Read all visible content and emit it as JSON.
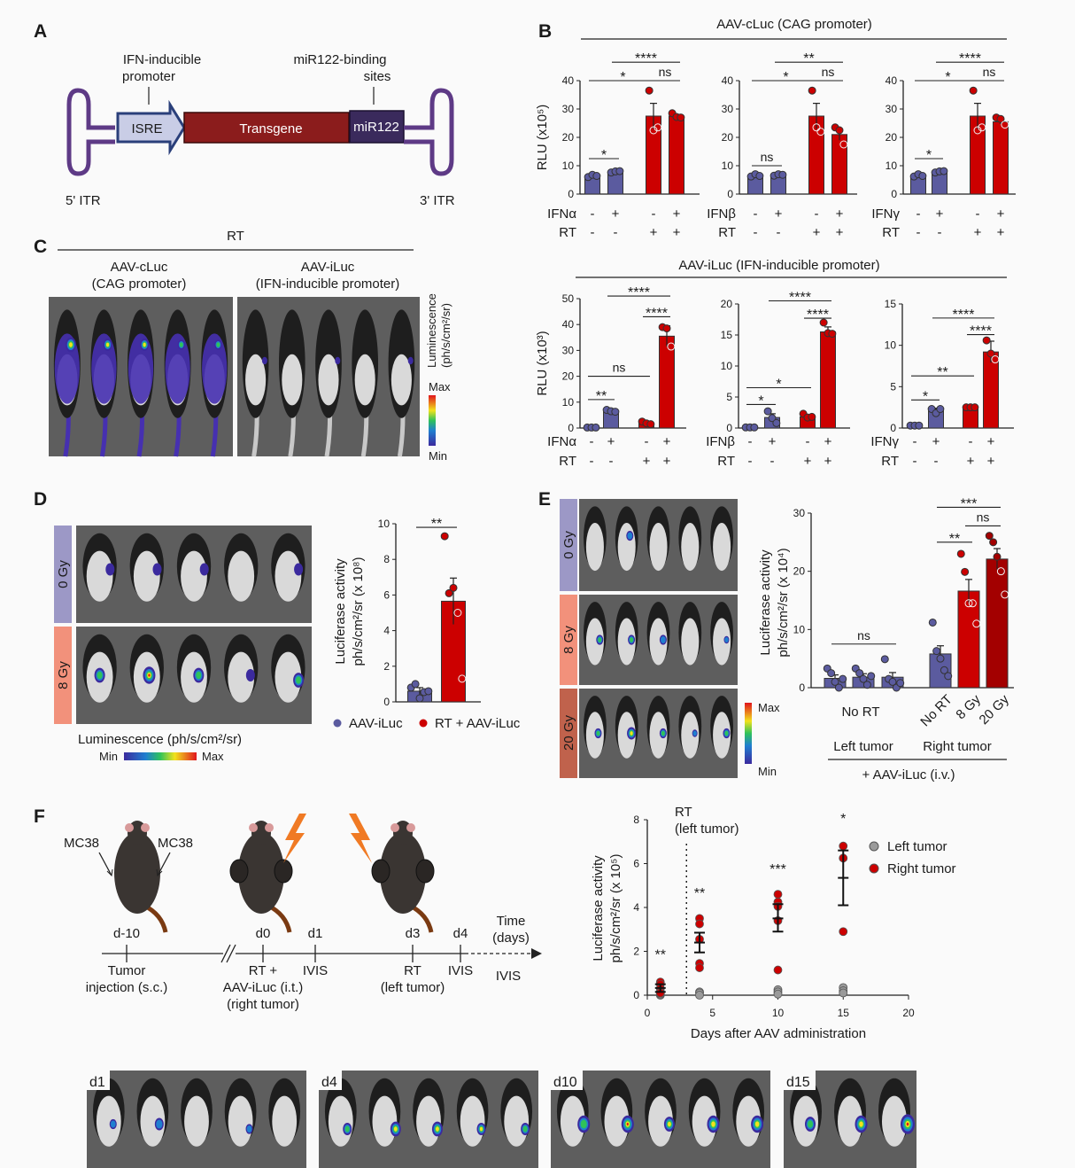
{
  "panels": {
    "A": {
      "letter": "A",
      "promoter_label_1": "IFN-inducible",
      "promoter_label_2": "promoter",
      "mir_label_1": "miR122-binding",
      "mir_label_2": "sites",
      "isre": "ISRE",
      "transgene": "Transgene",
      "mir122": "miR122",
      "itr5": "5' ITR",
      "itr3": "3' ITR"
    },
    "B": {
      "letter": "B",
      "title_top": "AAV-cLuc (CAG promoter)",
      "title_bottom": "AAV-iLuc (IFN-inducible promoter)"
    },
    "C": {
      "letter": "C",
      "header": "RT",
      "col1_1": "AAV-cLuc",
      "col1_2": "(CAG promoter)",
      "col2_1": "AAV-iLuc",
      "col2_2": "(IFN-inducible promoter)",
      "scale_label": "Luminescence",
      "scale_unit": "(ph/s/cm²/sr)",
      "max": "Max",
      "min": "Min"
    },
    "D": {
      "letter": "D",
      "row1": "0 Gy",
      "row2": "8 Gy",
      "scale_label": "Luminescence (ph/s/cm²/sr)",
      "min": "Min",
      "max": "Max"
    },
    "E": {
      "letter": "E",
      "row1": "0 Gy",
      "row2": "8 Gy",
      "row3": "20 Gy",
      "max": "Max",
      "min": "Min",
      "group_left": "No RT",
      "left_tumor": "Left tumor",
      "right_tumor": "Right tumor",
      "treatment": "+ AAV-iLuc (i.v.)"
    },
    "F": {
      "letter": "F",
      "mc38_left": "MC38",
      "mc38_right": "MC38",
      "timeline": [
        {
          "day": "d-10",
          "below": [
            "Tumor",
            "injection (s.c.)"
          ]
        },
        {
          "day": "d0",
          "below": [
            "RT +",
            "AAV-iLuc (i.t.)",
            "(right tumor)"
          ]
        },
        {
          "day": "d1",
          "below": [
            "IVIS"
          ]
        },
        {
          "day": "d3",
          "below": [
            "RT",
            "(left tumor)"
          ]
        },
        {
          "day": "d4",
          "below": [
            "IVIS"
          ]
        }
      ],
      "time_label_1": "Time",
      "time_label_2": "(days)",
      "last_ivis": "IVIS",
      "images": [
        "d1",
        "d4",
        "d10",
        "d15"
      ]
    }
  },
  "colors": {
    "ifn_minus_rt_minus": "#5b5b9f",
    "rt": "#cc0000",
    "rt_20gy": "#a30000",
    "left_tumor": "#9a9a9a",
    "itr": "#5e3a86",
    "transgene": "#8b1c1c",
    "mir122_box": "#3a2a5c",
    "isre_box": "#c9cde6",
    "gy0": "#9c98c6",
    "gy8": "#f2917b",
    "gy20": "#c0624c"
  },
  "chart_data": [
    {
      "type": "bar",
      "ylabel": "RLU (x10⁵)",
      "ylim": [
        0,
        40
      ],
      "yticks": [
        0,
        10,
        20,
        30,
        40
      ],
      "rows": [
        {
          "label": "IFNα",
          "values": [
            "-",
            "+",
            "-",
            "+"
          ]
        },
        {
          "label": "RT",
          "values": [
            "-",
            "-",
            "+",
            "+"
          ]
        }
      ],
      "values": [
        6.5,
        8,
        27.5,
        27.5
      ],
      "sem": [
        0.4,
        0.2,
        4.5,
        0.6
      ],
      "points": [
        [
          6,
          6.8,
          6.4
        ],
        [
          7.6,
          8,
          8.1
        ],
        [
          36.5,
          22.5,
          23.5
        ],
        [
          28.5,
          27.2,
          27
        ]
      ],
      "brackets": [
        {
          "a": 0,
          "b": 1,
          "y": 12.5,
          "label": "*"
        },
        {
          "a": 0,
          "b": 2,
          "y": 40,
          "label": "*"
        },
        {
          "a": 2,
          "b": 3,
          "y": 40,
          "label": "ns"
        },
        {
          "a": 1,
          "b": 3,
          "y": 46.5,
          "label": "****"
        }
      ]
    },
    {
      "type": "bar",
      "ylabel": "",
      "ylim": [
        0,
        40
      ],
      "yticks": [
        0,
        10,
        20,
        30,
        40
      ],
      "rows": [
        {
          "label": "IFNβ",
          "values": [
            "-",
            "+",
            "-",
            "+"
          ]
        },
        {
          "label": "RT",
          "values": [
            "-",
            "-",
            "+",
            "+"
          ]
        }
      ],
      "values": [
        6.5,
        6.8,
        27.5,
        21
      ],
      "sem": [
        0.3,
        0.2,
        4.5,
        2
      ],
      "points": [
        [
          6.2,
          7,
          6.4
        ],
        [
          6.5,
          7,
          6.8
        ],
        [
          36.5,
          23.5,
          22
        ],
        [
          23.5,
          22.5,
          17.5
        ]
      ],
      "brackets": [
        {
          "a": 0,
          "b": 1,
          "y": 10,
          "label": "ns"
        },
        {
          "a": 0,
          "b": 2,
          "y": 40,
          "label": "*"
        },
        {
          "a": 2,
          "b": 3,
          "y": 40,
          "label": "ns"
        },
        {
          "a": 1,
          "b": 3,
          "y": 46.5,
          "label": "**"
        }
      ]
    },
    {
      "type": "bar",
      "ylabel": "",
      "ylim": [
        0,
        40
      ],
      "yticks": [
        0,
        10,
        20,
        30,
        40
      ],
      "rows": [
        {
          "label": "IFNγ",
          "values": [
            "-",
            "+",
            "-",
            "+"
          ]
        },
        {
          "label": "RT",
          "values": [
            "-",
            "-",
            "+",
            "+"
          ]
        }
      ],
      "values": [
        6.5,
        8,
        27.5,
        25.5
      ],
      "sem": [
        0.4,
        0.2,
        4.5,
        0.8
      ],
      "points": [
        [
          6.2,
          7,
          6.4
        ],
        [
          7.6,
          8,
          8.1
        ],
        [
          36.5,
          22.5,
          23.5
        ],
        [
          27,
          26.5,
          24.5
        ]
      ],
      "brackets": [
        {
          "a": 0,
          "b": 1,
          "y": 12.5,
          "label": "*"
        },
        {
          "a": 0,
          "b": 2,
          "y": 40,
          "label": "*"
        },
        {
          "a": 2,
          "b": 3,
          "y": 40,
          "label": "ns"
        },
        {
          "a": 1,
          "b": 3,
          "y": 46.5,
          "label": "****"
        }
      ]
    },
    {
      "type": "bar",
      "ylabel": "RLU (x10³)",
      "ylim": [
        0,
        50
      ],
      "yticks": [
        0,
        10,
        20,
        30,
        40,
        50
      ],
      "rows": [
        {
          "label": "IFNα",
          "values": [
            "-",
            "+",
            "-",
            "+"
          ]
        },
        {
          "label": "RT",
          "values": [
            "-",
            "-",
            "+",
            "+"
          ]
        }
      ],
      "values": [
        0.3,
        6.5,
        2,
        35.5
      ],
      "sem": [
        0.1,
        0.4,
        0.4,
        4
      ],
      "points": [
        [
          0.2,
          0.2,
          0.2
        ],
        [
          7,
          6.5,
          6.3
        ],
        [
          2.5,
          1.8,
          1.5
        ],
        [
          39,
          38.5,
          31.5
        ]
      ],
      "brackets": [
        {
          "a": 0,
          "b": 1,
          "y": 11,
          "label": "**"
        },
        {
          "a": 0,
          "b": 2,
          "y": 20,
          "label": "ns"
        },
        {
          "a": 2,
          "b": 3,
          "y": 43,
          "label": "****"
        },
        {
          "a": 1,
          "b": 3,
          "y": 51,
          "label": "****"
        }
      ]
    },
    {
      "type": "bar",
      "ylabel": "",
      "ylim": [
        0,
        20
      ],
      "yticks": [
        0,
        5,
        10,
        15,
        20
      ],
      "rows": [
        {
          "label": "IFNβ",
          "values": [
            "-",
            "+",
            "-",
            "+"
          ]
        },
        {
          "label": "RT",
          "values": [
            "-",
            "-",
            "+",
            "+"
          ]
        }
      ],
      "values": [
        0.1,
        1.7,
        1.8,
        15.5
      ],
      "sem": [
        0.05,
        0.6,
        0.3,
        0.8
      ],
      "points": [
        [
          0.1,
          0.1,
          0.1
        ],
        [
          2.7,
          1.6,
          0.8
        ],
        [
          2.3,
          1.7,
          1.8
        ],
        [
          17,
          15.3,
          15.2
        ]
      ],
      "brackets": [
        {
          "a": 0,
          "b": 1,
          "y": 3.8,
          "label": "*"
        },
        {
          "a": 0,
          "b": 2,
          "y": 6.5,
          "label": "*"
        },
        {
          "a": 2,
          "b": 3,
          "y": 17.7,
          "label": "****"
        },
        {
          "a": 1,
          "b": 3,
          "y": 20.5,
          "label": "****"
        }
      ]
    },
    {
      "type": "bar",
      "ylabel": "",
      "ylim": [
        0,
        15
      ],
      "yticks": [
        0,
        5,
        10,
        15
      ],
      "rows": [
        {
          "label": "IFNγ",
          "values": [
            "-",
            "+",
            "-",
            "+"
          ]
        },
        {
          "label": "RT",
          "values": [
            "-",
            "-",
            "+",
            "+"
          ]
        }
      ],
      "values": [
        0.3,
        2.2,
        2.5,
        9.2
      ],
      "sem": [
        0.05,
        0.2,
        0.1,
        1.3
      ],
      "points": [
        [
          0.3,
          0.3,
          0.3
        ],
        [
          2.3,
          1.8,
          2.3
        ],
        [
          2.5,
          2.5,
          2.5
        ],
        [
          10.6,
          9,
          8.3
        ]
      ],
      "brackets": [
        {
          "a": 0,
          "b": 1,
          "y": 3.4,
          "label": "*"
        },
        {
          "a": 0,
          "b": 2,
          "y": 6.3,
          "label": "**"
        },
        {
          "a": 2,
          "b": 3,
          "y": 11.3,
          "label": "****"
        },
        {
          "a": 1,
          "b": 3,
          "y": 13.3,
          "label": "****"
        }
      ]
    },
    {
      "type": "bar",
      "ylabel": [
        "Luciferase activity",
        "ph/s/cm²/sr (x 10⁸)"
      ],
      "ylim": [
        0,
        10
      ],
      "yticks": [
        0,
        2,
        4,
        6,
        8,
        10
      ],
      "legend": [
        "AAV-iLuc",
        "RT + AAV-iLuc"
      ],
      "values": [
        0.6,
        5.65
      ],
      "sem": [
        0.2,
        1.3
      ],
      "points": [
        [
          0.8,
          1,
          0.2,
          0.55,
          0.6
        ],
        [
          9.3,
          6.1,
          6.4,
          5,
          1.3
        ]
      ],
      "brackets": [
        {
          "a": 0,
          "b": 1,
          "y": 9.8,
          "label": "**"
        }
      ]
    },
    {
      "type": "bar",
      "ylabel": [
        "Luciferase activity",
        "ph/s/cm²/sr (x 10⁴)"
      ],
      "ylim": [
        0,
        30
      ],
      "yticks": [
        0,
        10,
        20,
        30
      ],
      "categories": [
        "",
        "",
        "",
        "No RT",
        "8 Gy",
        "20 Gy"
      ],
      "values": [
        1.6,
        1.8,
        1.8,
        5.8,
        16.6,
        22.1
      ],
      "sem": [
        0.6,
        0.6,
        0.8,
        1.4,
        2,
        1.8
      ],
      "points": [
        [
          3.3,
          2.5,
          1,
          0,
          1.5
        ],
        [
          3.3,
          2.5,
          1.5,
          0.5,
          2
        ],
        [
          4.9,
          1.5,
          1,
          0,
          0.8
        ],
        [
          11.2,
          6.3,
          5,
          3,
          2
        ],
        [
          23,
          19.9,
          14.5,
          14.5,
          11
        ],
        [
          26.1,
          25,
          22.5,
          20,
          16
        ]
      ],
      "brackets": [
        {
          "a": 0,
          "b": 2,
          "y": 7.5,
          "label": "ns"
        },
        {
          "a": 3,
          "b": 4,
          "y": 25,
          "label": "**"
        },
        {
          "a": 4,
          "b": 5,
          "y": 27.8,
          "label": "ns"
        },
        {
          "a": 3,
          "b": 5,
          "y": 31,
          "label": "***"
        }
      ]
    },
    {
      "type": "scatter",
      "xlabel": "Days after AAV administration",
      "ylabel": [
        "Luciferase activity",
        "ph/s/cm²/sr (x 10⁵)"
      ],
      "xlim": [
        0,
        20
      ],
      "ylim": [
        0,
        8
      ],
      "xticks": [
        0,
        5,
        10,
        15,
        20
      ],
      "yticks": [
        0,
        2,
        4,
        6,
        8
      ],
      "annotation": {
        "x": 3,
        "label_1": "RT",
        "label_2": "(left tumor)"
      },
      "series": [
        {
          "name": "Left tumor",
          "x": [
            1,
            1,
            1,
            4,
            4,
            4,
            10,
            10,
            10,
            15,
            15,
            15
          ],
          "y": [
            0,
            0.05,
            0.1,
            0.15,
            0.1,
            0,
            0.25,
            0.15,
            0.05,
            0.35,
            0.2,
            0.1
          ]
        },
        {
          "name": "Right tumor",
          "x": [
            1,
            1,
            1,
            1,
            1,
            4,
            4,
            4,
            4,
            4,
            10,
            10,
            10,
            10,
            10,
            15,
            15,
            15
          ],
          "y": [
            0.6,
            0.5,
            0.3,
            0.15,
            0.1,
            3.5,
            3.25,
            2.55,
            1.45,
            1.25,
            4.6,
            4.25,
            4.05,
            3.4,
            1.15,
            6.8,
            6.25,
            2.9
          ]
        }
      ],
      "right_mean": [
        {
          "x": 1,
          "mean": 0.33,
          "lo": 0.15,
          "hi": 0.5
        },
        {
          "x": 4,
          "mean": 2.4,
          "lo": 1.95,
          "hi": 2.85
        },
        {
          "x": 10,
          "mean": 3.5,
          "lo": 2.9,
          "hi": 4.15
        },
        {
          "x": 15,
          "mean": 5.35,
          "lo": 4.1,
          "hi": 6.6
        }
      ],
      "stars": [
        {
          "x": 1,
          "y": 1.8,
          "label": "**"
        },
        {
          "x": 4,
          "y": 4.6,
          "label": "**"
        },
        {
          "x": 10,
          "y": 5.7,
          "label": "***"
        },
        {
          "x": 15,
          "y": 8,
          "label": "*"
        }
      ]
    }
  ]
}
